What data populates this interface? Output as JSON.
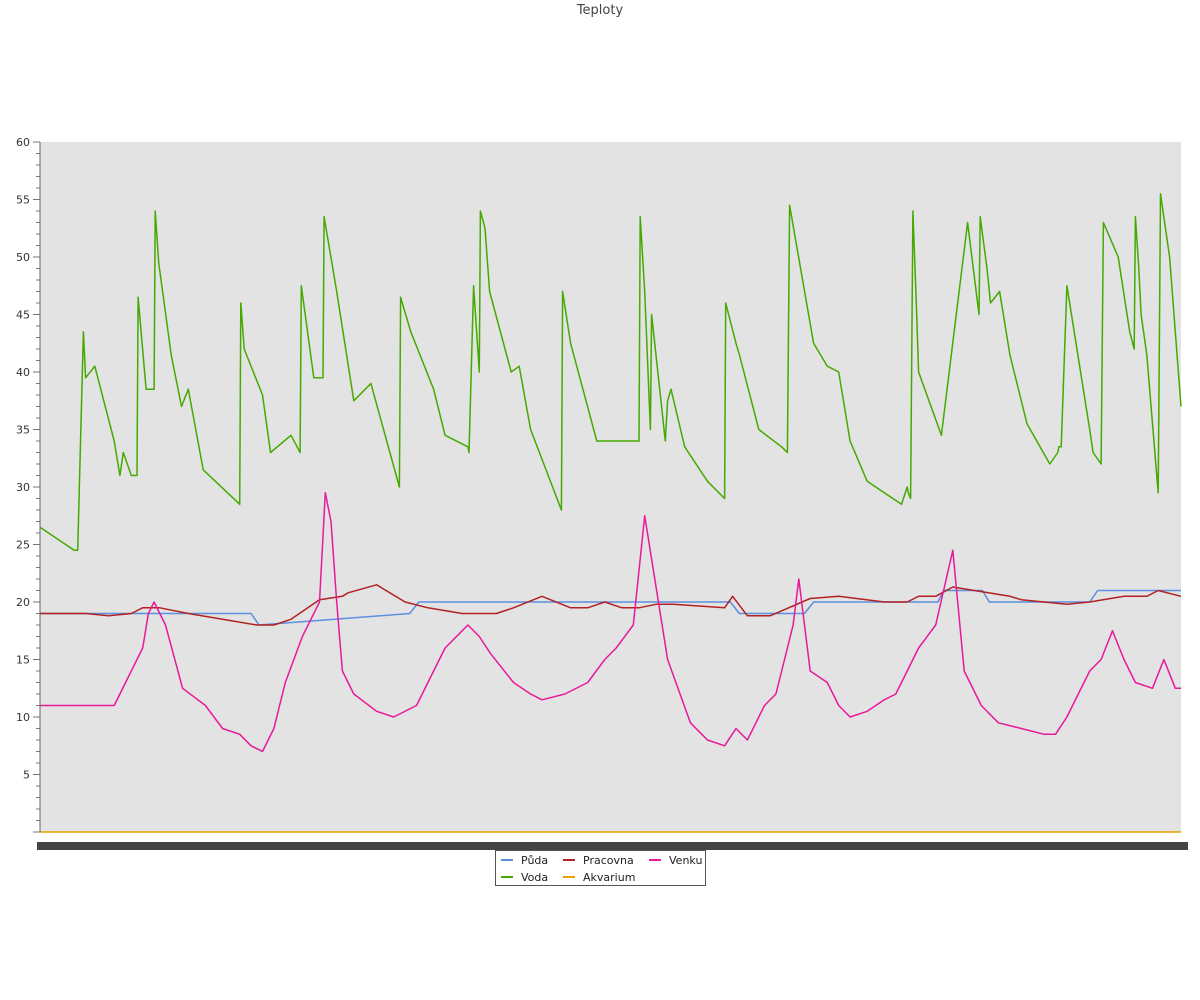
{
  "chart_data": {
    "type": "line",
    "title": "Teploty",
    "xlabel": "",
    "ylabel": "",
    "ylim": [
      0,
      60
    ],
    "yticks": [
      "5",
      "10",
      "15",
      "20",
      "25",
      "30",
      "35",
      "40",
      "45",
      "50",
      "55",
      "60"
    ],
    "grid": false,
    "legend_position": "bottom-center",
    "background": "#e3e3e3",
    "x_domain": [
      0,
      100
    ],
    "series": [
      {
        "name": "Půda",
        "color": "#5b8fe0",
        "x": [
          0,
          18.5,
          19.2,
          32.4,
          33.2,
          60.5,
          61.3,
          67.0,
          67.8,
          78.7,
          79.2,
          82.6,
          83.2,
          92.0,
          92.7,
          100
        ],
        "values": [
          19,
          19,
          18,
          19,
          20,
          20,
          19,
          19,
          20,
          20,
          21,
          21,
          20,
          20,
          21,
          21
        ]
      },
      {
        "name": "Voda",
        "color": "#44aa00",
        "x": [
          0,
          3.0,
          3.3,
          3.8,
          4.0,
          4.8,
          6.5,
          7.0,
          7.3,
          8.0,
          8.5,
          8.6,
          9.3,
          10.0,
          10.1,
          10.4,
          11.5,
          12.4,
          13.0,
          14.3,
          17.5,
          17.6,
          17.9,
          19.5,
          20.2,
          22.0,
          22.8,
          22.9,
          24.0,
          24.8,
          24.9,
          26.0,
          27.5,
          29.0,
          31.5,
          31.6,
          32.5,
          34.5,
          35.5,
          37.5,
          37.6,
          38.0,
          38.5,
          38.6,
          39.0,
          39.4,
          41.3,
          42.0,
          43.0,
          45.7,
          45.8,
          46.5,
          48.8,
          50.0,
          52.5,
          52.6,
          53.0,
          53.5,
          53.6,
          54.8,
          55.0,
          55.3,
          56.5,
          58.5,
          60.0,
          60.1,
          61.0,
          61.3,
          63.0,
          65.0,
          65.5,
          65.7,
          67.8,
          69.0,
          70.0,
          71.0,
          72.5,
          75.5,
          76.0,
          76.1,
          76.3,
          76.5,
          76.8,
          77.0,
          79.0,
          81.3,
          82.3,
          82.4,
          83.0,
          83.3,
          84.1,
          85.0,
          86.5,
          88.5,
          89.2,
          89.3,
          89.5,
          90.0,
          92.0,
          92.3,
          93.0,
          93.2,
          94.5,
          95.5,
          95.9,
          96.0,
          96.3,
          96.5,
          97.0,
          98.0,
          98.2,
          99.0,
          100
        ],
        "values": [
          26.5,
          24.5,
          24.5,
          43.5,
          39.5,
          40.5,
          34.0,
          31.0,
          33.0,
          31.0,
          31.0,
          46.5,
          38.5,
          38.5,
          54.0,
          49.5,
          41.5,
          37.0,
          38.5,
          31.5,
          28.5,
          46.0,
          42.0,
          38.0,
          33.0,
          34.5,
          33.0,
          47.5,
          39.5,
          39.5,
          53.5,
          47.0,
          37.5,
          39.0,
          30.0,
          46.5,
          43.5,
          38.5,
          34.5,
          33.5,
          33.0,
          47.5,
          40.0,
          54.0,
          52.5,
          47.0,
          40.0,
          40.5,
          35.0,
          28.0,
          47.0,
          42.5,
          34.0,
          34.0,
          34.0,
          53.5,
          47.0,
          35.0,
          45.0,
          34.0,
          37.5,
          38.5,
          33.5,
          30.5,
          29.0,
          46.0,
          42.5,
          41.5,
          35.0,
          33.5,
          33.0,
          54.5,
          42.5,
          40.5,
          40.0,
          34.0,
          30.5,
          28.5,
          30.0,
          29.5,
          29.0,
          54.0,
          46.0,
          40.0,
          34.5,
          53.0,
          45.0,
          53.5,
          49.0,
          46.0,
          47.0,
          41.5,
          35.5,
          32.0,
          33.0,
          33.5,
          33.5,
          47.5,
          35.0,
          33.0,
          32.0,
          53.0,
          50.0,
          43.5,
          42.0,
          53.5,
          49.0,
          45.0,
          41.5,
          29.5,
          55.5,
          50.0,
          37.0
        ]
      },
      {
        "name": "Pracovna",
        "color": "#b22222",
        "x": [
          0,
          4.0,
          6.0,
          8.0,
          9.0,
          10.5,
          13.0,
          16.0,
          19.0,
          20.5,
          22.0,
          24.5,
          26.5,
          27.0,
          29.5,
          32.0,
          34.0,
          37.0,
          38.0,
          40.0,
          41.5,
          44.0,
          46.5,
          48.0,
          49.5,
          51.0,
          52.5,
          54.0,
          55.5,
          60.0,
          60.7,
          62.0,
          64.0,
          67.5,
          70.0,
          74.0,
          76.0,
          77.0,
          78.5,
          80.0,
          85.0,
          86.0,
          88.0,
          90.0,
          92.0,
          95.0,
          97.0,
          98.0,
          100
        ],
        "values": [
          19,
          19,
          18.8,
          19,
          19.5,
          19.5,
          19.0,
          18.5,
          18.0,
          18.0,
          18.5,
          20.2,
          20.5,
          20.8,
          21.5,
          20.0,
          19.5,
          19.0,
          19.0,
          19.0,
          19.5,
          20.5,
          19.5,
          19.5,
          20.0,
          19.5,
          19.5,
          19.8,
          19.8,
          19.5,
          20.5,
          18.8,
          18.8,
          20.3,
          20.5,
          20.0,
          20.0,
          20.5,
          20.5,
          21.3,
          20.5,
          20.2,
          20.0,
          19.8,
          20.0,
          20.5,
          20.5,
          21.0,
          20.5
        ],
        "extra_marker": null
      },
      {
        "name": "Akvarium",
        "color": "#e8a000",
        "x": [
          0,
          100
        ],
        "values": [
          0,
          0
        ]
      },
      {
        "name": "Venku",
        "color": "#e8199a",
        "x": [
          0,
          5.0,
          6.5,
          7.5,
          9.0,
          9.5,
          10.0,
          11.0,
          12.5,
          14.5,
          16.0,
          17.5,
          18.5,
          19.5,
          20.5,
          21.5,
          23.0,
          24.5,
          25.0,
          25.5,
          26.0,
          26.5,
          27.5,
          29.5,
          31.0,
          33.0,
          34.0,
          35.5,
          36.5,
          37.5,
          38.5,
          39.5,
          41.5,
          43.0,
          44.0,
          46.0,
          48.0,
          49.5,
          50.5,
          52.0,
          53.0,
          55.0,
          57.0,
          58.5,
          60.0,
          61.0,
          62.0,
          63.5,
          64.5,
          65.5,
          66.0,
          66.5,
          67.5,
          69.0,
          70.0,
          71.0,
          72.5,
          74.0,
          75.0,
          77.0,
          78.5,
          80.0,
          81.0,
          82.5,
          84.0,
          86.0,
          88.0,
          89.0,
          90.0,
          91.5,
          92.0,
          93.0,
          94.0,
          95.0,
          96.0,
          97.5,
          98.5,
          99.5,
          100
        ],
        "values": [
          11,
          11,
          11,
          13,
          16,
          19,
          20,
          18,
          12.5,
          11,
          9,
          8.5,
          7.5,
          7,
          9,
          13,
          17,
          20,
          29.5,
          27,
          20,
          14,
          12,
          10.5,
          10,
          11,
          13,
          16,
          17,
          18,
          17,
          15.5,
          13,
          12,
          11.5,
          12,
          13,
          15,
          16,
          18,
          27.5,
          15,
          9.5,
          8,
          7.5,
          9,
          8,
          11,
          12,
          16,
          18,
          22,
          14,
          13,
          11,
          10,
          10.5,
          11.5,
          12,
          16,
          18,
          24.5,
          14,
          11,
          9.5,
          9,
          8.5,
          8.5,
          10,
          13,
          14,
          15,
          17.5,
          15,
          13,
          12.5,
          15,
          12.5,
          12.5
        ]
      }
    ]
  }
}
